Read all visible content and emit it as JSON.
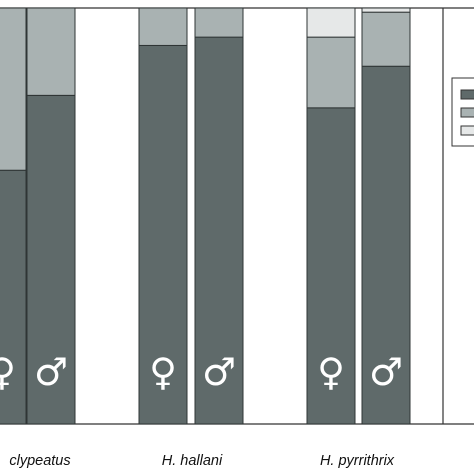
{
  "chart_data": {
    "type": "bar",
    "stacked": true,
    "orientation": "vertical",
    "ylim": [
      0,
      100
    ],
    "categories": [
      "H. clypeatus ♀",
      "H. clypeatus ♂",
      "H. hallani ♀",
      "H. hallani ♂",
      "H. pyrrithrix ♀",
      "H. pyrrithrix ♂"
    ],
    "group_labels": [
      "clypeatus",
      "H. hallani",
      "H. pyrrithrix"
    ],
    "sex_symbols": [
      "♀",
      "♂",
      "♀",
      "♂",
      "♀",
      "♂"
    ],
    "series": [
      {
        "color": "#5f6a6a",
        "values": [
          61,
          79,
          91,
          93,
          76,
          86
        ]
      },
      {
        "color": "#a9b2b2",
        "values": [
          39,
          21,
          9,
          7,
          17,
          13
        ]
      },
      {
        "color": "#e6e8e8",
        "values": [
          0,
          0,
          0,
          0,
          7,
          1
        ]
      }
    ],
    "legend": {
      "position": "right",
      "entries": 3
    },
    "grid": false
  }
}
